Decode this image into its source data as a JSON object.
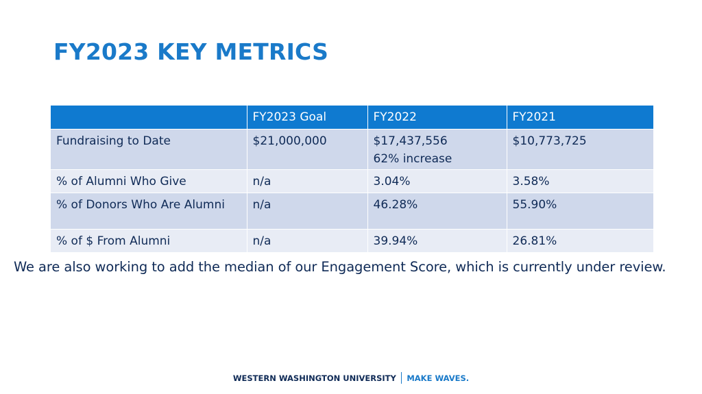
{
  "slide": {
    "title": "FY2023 KEY METRICS"
  },
  "table": {
    "headers": [
      "",
      "FY2023 Goal",
      "FY2022",
      "FY2021"
    ],
    "rows": [
      {
        "metric": "Fundraising to Date",
        "goal": "$21,000,000",
        "fy2022": "$17,437,556",
        "fy2022_note": "62% increase",
        "fy2021": "$10,773,725"
      },
      {
        "metric": "% of Alumni Who Give",
        "goal": "n/a",
        "fy2022": "3.04%",
        "fy2021": "3.58%"
      },
      {
        "metric": "% of Donors Who Are Alumni",
        "goal": "n/a",
        "fy2022": "46.28%",
        "fy2021": "55.90%"
      },
      {
        "metric": "% of $ From Alumni",
        "goal": "n/a",
        "fy2022": "39.94%",
        "fy2021": "26.81%"
      }
    ]
  },
  "note": "We are also working to add the median of our Engagement Score, which is currently under review.",
  "footer": {
    "university": "WESTERN WASHINGTON UNIVERSITY",
    "tagline": "MAKE WAVES."
  },
  "colors": {
    "title": "#1a7ac9",
    "header_bg": "#0f7ad0",
    "band_dark": "#cfd8eb",
    "band_light": "#e8ecf5",
    "text_navy": "#0f2a56"
  }
}
